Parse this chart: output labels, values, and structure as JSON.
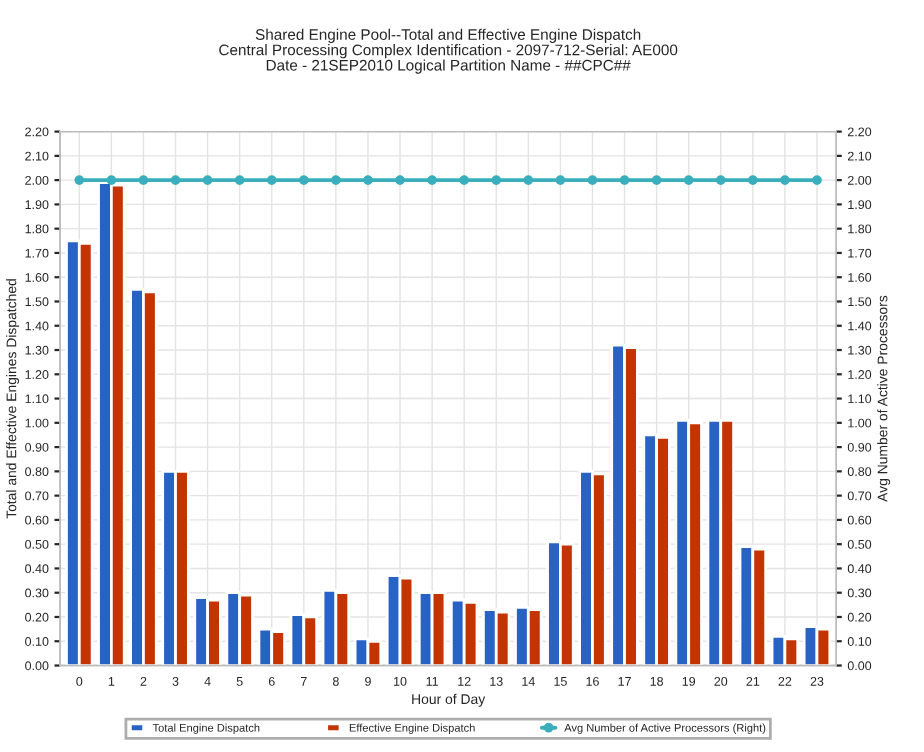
{
  "chart_data": {
    "type": "bar",
    "title": "Shared Engine Pool--Total and Effective Engine Dispatch\nCentral Processing Complex Identification - 2097-712-Serial: AE000\nDate - 21SEP2010 Logical Partition Name - ##CPC##",
    "xlabel": "Hour of Day",
    "ylabel": "Total and Effective Engines Dispatched",
    "y2label": "Avg Number of Active Processors",
    "categories": [
      "0",
      "1",
      "2",
      "3",
      "4",
      "5",
      "6",
      "7",
      "8",
      "9",
      "10",
      "11",
      "12",
      "13",
      "14",
      "15",
      "16",
      "17",
      "18",
      "19",
      "20",
      "21",
      "22",
      "23"
    ],
    "series": [
      {
        "name": "Total Engine Dispatch",
        "color": "#2862c4",
        "values": [
          1.75,
          1.99,
          1.55,
          0.8,
          0.28,
          0.3,
          0.15,
          0.21,
          0.31,
          0.11,
          0.37,
          0.3,
          0.27,
          0.23,
          0.24,
          0.51,
          0.8,
          1.32,
          0.95,
          1.01,
          1.01,
          0.49,
          0.12,
          0.16
        ]
      },
      {
        "name": "Effective Engine Dispatch",
        "color": "#c43400",
        "values": [
          1.74,
          1.98,
          1.54,
          0.8,
          0.27,
          0.29,
          0.14,
          0.2,
          0.3,
          0.1,
          0.36,
          0.3,
          0.26,
          0.22,
          0.23,
          0.5,
          0.79,
          1.31,
          0.94,
          1.0,
          1.01,
          0.48,
          0.11,
          0.15
        ]
      },
      {
        "name": "Avg Number of Active Processors (Right)",
        "type": "line",
        "axis": "y2",
        "color": "#3aaebc",
        "marker": "circle",
        "values": [
          2,
          2,
          2,
          2,
          2,
          2,
          2,
          2,
          2,
          2,
          2,
          2,
          2,
          2,
          2,
          2,
          2,
          2,
          2,
          2,
          2,
          2,
          2,
          2
        ]
      }
    ],
    "ylim": [
      0,
      2.2
    ],
    "yticks": [
      {
        "value": 0,
        "label": "0.00"
      },
      {
        "value": 0.1,
        "label": "0.10"
      },
      {
        "value": 0.2,
        "label": "0.20"
      },
      {
        "value": 0.3,
        "label": "0.30"
      },
      {
        "value": 0.4,
        "label": "0.40"
      },
      {
        "value": 0.5,
        "label": "0.50"
      },
      {
        "value": 0.6,
        "label": "0.60"
      },
      {
        "value": 0.7,
        "label": "0.70"
      },
      {
        "value": 0.8,
        "label": "0.80"
      },
      {
        "value": 0.9,
        "label": "0.90"
      },
      {
        "value": 1,
        "label": "1.00"
      },
      {
        "value": 1.1,
        "label": "1.10"
      },
      {
        "value": 1.2,
        "label": "1.20"
      },
      {
        "value": 1.3,
        "label": "1.30"
      },
      {
        "value": 1.4,
        "label": "1.40"
      },
      {
        "value": 1.5,
        "label": "1.50"
      },
      {
        "value": 1.6,
        "label": "1.60"
      },
      {
        "value": 1.7,
        "label": "1.70"
      },
      {
        "value": 1.8,
        "label": "1.80"
      },
      {
        "value": 1.9,
        "label": "1.90"
      },
      {
        "value": 2,
        "label": "2.00"
      },
      {
        "value": 2.1,
        "label": "2.10"
      },
      {
        "value": 2.2,
        "label": "2.20"
      }
    ],
    "y2lim": [
      0,
      2.2
    ],
    "y2ticks": [
      {
        "value": 0,
        "label": "0.00"
      },
      {
        "value": 0.1,
        "label": "0.10"
      },
      {
        "value": 0.2,
        "label": "0.20"
      },
      {
        "value": 0.3,
        "label": "0.30"
      },
      {
        "value": 0.4,
        "label": "0.40"
      },
      {
        "value": 0.5,
        "label": "0.50"
      },
      {
        "value": 0.6,
        "label": "0.60"
      },
      {
        "value": 0.7,
        "label": "0.70"
      },
      {
        "value": 0.8,
        "label": "0.80"
      },
      {
        "value": 0.9,
        "label": "0.90"
      },
      {
        "value": 1,
        "label": "1.00"
      },
      {
        "value": 1.1,
        "label": "1.10"
      },
      {
        "value": 1.2,
        "label": "1.20"
      },
      {
        "value": 1.3,
        "label": "1.30"
      },
      {
        "value": 1.4,
        "label": "1.40"
      },
      {
        "value": 1.5,
        "label": "1.50"
      },
      {
        "value": 1.6,
        "label": "1.60"
      },
      {
        "value": 1.7,
        "label": "1.70"
      },
      {
        "value": 1.8,
        "label": "1.80"
      },
      {
        "value": 1.9,
        "label": "1.90"
      },
      {
        "value": 2,
        "label": "2.00"
      },
      {
        "value": 2.1,
        "label": "2.10"
      },
      {
        "value": 2.2,
        "label": "2.20"
      }
    ],
    "grid": true,
    "legend": "bottom"
  }
}
